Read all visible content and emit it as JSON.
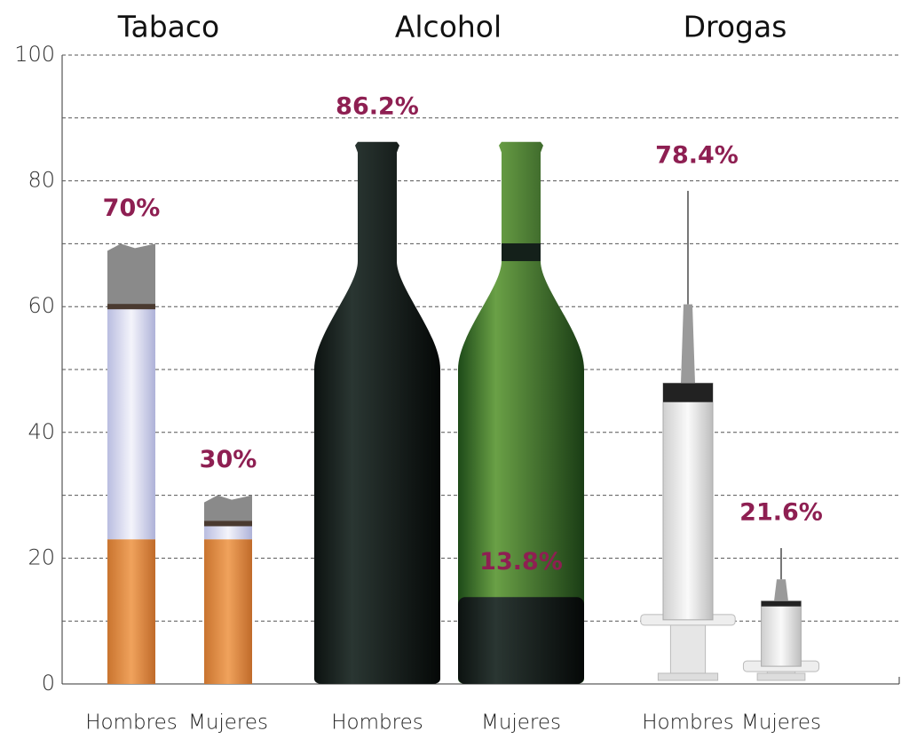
{
  "chart_data": {
    "type": "bar",
    "groups": [
      "Tabaco",
      "Alcohol",
      "Drogas"
    ],
    "categories": [
      "Hombres",
      "Mujeres",
      "Hombres",
      "Mujeres",
      "Hombres",
      "Mujeres"
    ],
    "values": [
      70,
      30,
      86.2,
      13.8,
      78.4,
      21.6
    ],
    "value_labels": [
      "70%",
      "30%",
      "86.2%",
      "13.8%",
      "78.4%",
      "21.6%"
    ],
    "ylim": [
      0,
      100
    ],
    "yticks": [
      0,
      20,
      40,
      60,
      80,
      100
    ],
    "minor_yticks": [
      10,
      30,
      50,
      70,
      90
    ],
    "grid": true,
    "label_color": "#8e1f52"
  }
}
